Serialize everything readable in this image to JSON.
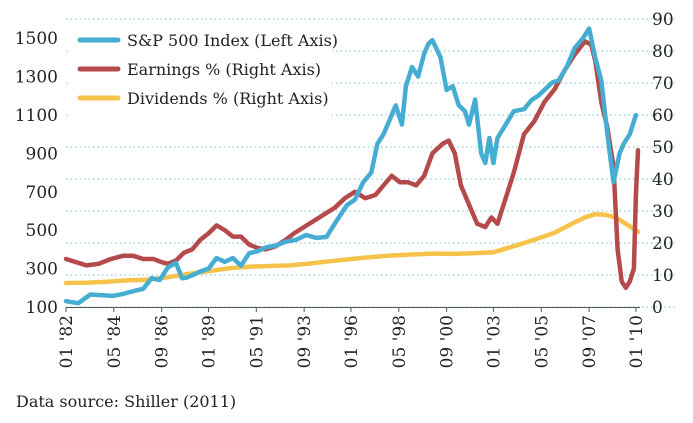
{
  "chart_data": {
    "type": "line",
    "title": "",
    "xlabel": "",
    "ylabel_left": "",
    "ylabel_right": "",
    "left_axis": {
      "min": 100,
      "max": 1600,
      "ticks": [
        100,
        300,
        500,
        700,
        900,
        1100,
        1300,
        1500
      ]
    },
    "right_axis": {
      "min": 0,
      "max": 90,
      "ticks": [
        0,
        10,
        20,
        30,
        40,
        50,
        60,
        70,
        80,
        90
      ]
    },
    "x_domain": [
      1982.0,
      2010.2
    ],
    "x_ticks": [
      {
        "label": "01 '82",
        "value": 1982.0
      },
      {
        "label": "05 '84",
        "value": 1984.35
      },
      {
        "label": "09 '86",
        "value": 1986.7
      },
      {
        "label": "01 '89",
        "value": 1989.0
      },
      {
        "label": "05 '91",
        "value": 1991.35
      },
      {
        "label": "09 '93",
        "value": 1993.7
      },
      {
        "label": "01 '96",
        "value": 1996.0
      },
      {
        "label": "05 '98",
        "value": 1998.35
      },
      {
        "label": "09 '00",
        "value": 2000.7
      },
      {
        "label": "01 '03",
        "value": 2003.0
      },
      {
        "label": "05 '05",
        "value": 2005.35
      },
      {
        "label": "09 '07",
        "value": 2007.7
      },
      {
        "label": "01 '10",
        "value": 2010.0
      }
    ],
    "grid": "horizontal dotted at right-axis ticks",
    "legend_position": "top-left",
    "series": [
      {
        "name": "S&P 500 Index (Left Axis)",
        "axis": "left",
        "color": "#45acd2",
        "x": [
          1982.0,
          1982.6,
          1983.2,
          1983.7,
          1984.3,
          1984.8,
          1985.4,
          1985.8,
          1986.2,
          1986.6,
          1987.0,
          1987.4,
          1987.7,
          1987.9,
          1988.2,
          1988.6,
          1989.0,
          1989.4,
          1989.8,
          1990.2,
          1990.6,
          1991.0,
          1991.4,
          1991.8,
          1992.3,
          1992.8,
          1993.3,
          1993.8,
          1994.3,
          1994.8,
          1995.3,
          1995.8,
          1996.2,
          1996.6,
          1997.0,
          1997.3,
          1997.6,
          1998.0,
          1998.2,
          1998.5,
          1998.7,
          1999.0,
          1999.3,
          1999.6,
          1999.8,
          2000.0,
          2000.4,
          2000.7,
          2001.0,
          2001.3,
          2001.6,
          2001.8,
          2002.1,
          2002.4,
          2002.6,
          2002.8,
          2003.0,
          2003.2,
          2003.6,
          2004.0,
          2004.5,
          2004.9,
          2005.2,
          2005.5,
          2005.9,
          2006.2,
          2006.6,
          2007.0,
          2007.4,
          2007.7,
          2008.0,
          2008.3,
          2008.6,
          2008.9,
          2009.2,
          2009.4,
          2009.7,
          2010.0
        ],
        "values": [
          130,
          120,
          165,
          162,
          158,
          168,
          185,
          195,
          250,
          240,
          305,
          330,
          250,
          252,
          265,
          285,
          300,
          355,
          335,
          355,
          315,
          380,
          390,
          410,
          420,
          440,
          450,
          475,
          460,
          465,
          550,
          630,
          660,
          750,
          800,
          950,
          1000,
          1100,
          1150,
          1050,
          1250,
          1350,
          1300,
          1420,
          1470,
          1490,
          1400,
          1230,
          1250,
          1150,
          1120,
          1050,
          1180,
          900,
          850,
          980,
          850,
          980,
          1050,
          1120,
          1130,
          1180,
          1200,
          1230,
          1270,
          1280,
          1350,
          1450,
          1500,
          1550,
          1400,
          1280,
          1000,
          750,
          900,
          950,
          1000,
          1100
        ]
      },
      {
        "name": "Earnings % (Right Axis)",
        "axis": "right",
        "color": "#b44a4c",
        "x": [
          1982.0,
          1982.5,
          1983.0,
          1983.6,
          1984.2,
          1984.8,
          1985.3,
          1985.8,
          1986.3,
          1986.7,
          1987.0,
          1987.4,
          1987.8,
          1988.2,
          1988.6,
          1989.0,
          1989.4,
          1989.8,
          1990.2,
          1990.6,
          1991.0,
          1991.4,
          1991.8,
          1992.3,
          1992.8,
          1993.2,
          1993.7,
          1994.2,
          1994.7,
          1995.2,
          1995.7,
          1996.2,
          1996.7,
          1997.2,
          1997.6,
          1998.0,
          1998.4,
          1998.8,
          1999.2,
          1999.6,
          2000.0,
          2000.5,
          2000.8,
          2001.1,
          2001.4,
          2001.8,
          2002.2,
          2002.6,
          2002.9,
          2003.2,
          2003.6,
          2004.0,
          2004.5,
          2005.0,
          2005.5,
          2006.0,
          2006.5,
          2007.0,
          2007.5,
          2007.8,
          2008.0,
          2008.3,
          2008.6,
          2008.9,
          2009.1,
          2009.3,
          2009.5,
          2009.7,
          2009.9,
          2010.0,
          2010.1
        ],
        "values": [
          15,
          14,
          13,
          13.5,
          15,
          16,
          16,
          15,
          15,
          14,
          13.5,
          14.5,
          17,
          18,
          21,
          23,
          25.5,
          24,
          22,
          22,
          19.5,
          18.5,
          18,
          19,
          21,
          23,
          25,
          27,
          29,
          31,
          34,
          36,
          34,
          35,
          38,
          41,
          39,
          39,
          38,
          41,
          48,
          51,
          52,
          48,
          38,
          32,
          26,
          25,
          28,
          26,
          34,
          42,
          54,
          58,
          64,
          68,
          74,
          79,
          83,
          82,
          77,
          64,
          56,
          44,
          18,
          8,
          6,
          8,
          12,
          35,
          49
        ]
      },
      {
        "name": "Dividends % (Right Axis)",
        "axis": "right",
        "color": "#f5c24a",
        "x": [
          1982.0,
          1983.0,
          1984.0,
          1985.0,
          1986.0,
          1987.0,
          1988.0,
          1989.0,
          1990.0,
          1991.0,
          1992.0,
          1993.0,
          1994.0,
          1995.0,
          1996.0,
          1997.0,
          1998.0,
          1999.0,
          2000.0,
          2001.0,
          2002.0,
          2003.0,
          2004.0,
          2005.0,
          2006.0,
          2007.0,
          2007.5,
          2008.0,
          2008.5,
          2009.0,
          2009.5,
          2010.0,
          2010.1
        ],
        "values": [
          7.5,
          7.6,
          7.9,
          8.3,
          8.5,
          9.3,
          10.3,
          11.2,
          12.1,
          12.6,
          12.8,
          13.0,
          13.6,
          14.3,
          15.0,
          15.6,
          16.1,
          16.4,
          16.7,
          16.6,
          16.8,
          17.1,
          19.0,
          21.0,
          23.2,
          26.5,
          28.0,
          29.0,
          28.8,
          28.0,
          26.0,
          24.0,
          23.5
        ]
      }
    ]
  },
  "source_note": "Data source: Shiller (2011)"
}
